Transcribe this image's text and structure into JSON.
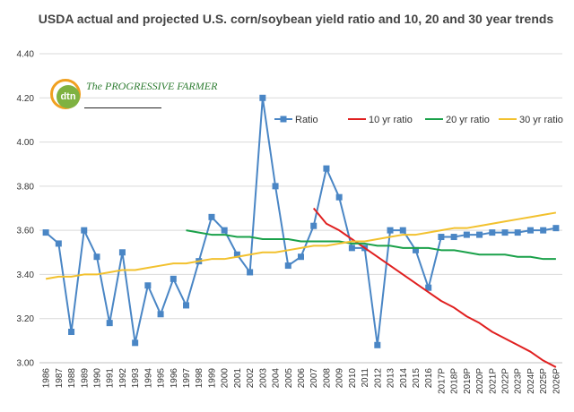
{
  "logo": {
    "brand_short": "dtn",
    "brand_long": "The PROGRESSIVE FARMER"
  },
  "chart_data": {
    "type": "line",
    "title": "USDA actual and projected U.S. corn/soybean yield ratio and 10, 20 and 30 year trends",
    "ylim": [
      3.0,
      4.4
    ],
    "yticks": [
      "3.00",
      "3.20",
      "3.40",
      "3.60",
      "3.80",
      "4.00",
      "4.20",
      "4.40"
    ],
    "grid": true,
    "legend_position": "top-right",
    "categories": [
      "1986",
      "1987",
      "1988",
      "1989",
      "1990",
      "1991",
      "1992",
      "1993",
      "1994",
      "1995",
      "1996",
      "1997",
      "1998",
      "1999",
      "2000",
      "2001",
      "2002",
      "2003",
      "2004",
      "2005",
      "2006",
      "2007",
      "2008",
      "2009",
      "2010",
      "2011",
      "2012",
      "2013",
      "2014",
      "2015",
      "2016",
      "2017P",
      "2018P",
      "2019P",
      "2020P",
      "2021P",
      "2022P",
      "2023P",
      "2024P",
      "2025P",
      "2026P"
    ],
    "series": [
      {
        "name": "Ratio",
        "color": "#4a86c5",
        "marker": "square",
        "values": [
          3.59,
          3.54,
          3.14,
          3.6,
          3.48,
          3.18,
          3.5,
          3.09,
          3.35,
          3.22,
          3.38,
          3.26,
          3.46,
          3.66,
          3.6,
          3.49,
          3.41,
          4.2,
          3.8,
          3.44,
          3.48,
          3.62,
          3.88,
          3.75,
          3.52,
          3.52,
          3.08,
          3.6,
          3.6,
          3.51,
          3.34,
          3.57,
          3.57,
          3.58,
          3.58,
          3.59,
          3.59,
          3.59,
          3.6,
          3.6,
          3.61
        ]
      },
      {
        "name": "10 yr ratio",
        "color": "#e02020",
        "values": [
          null,
          null,
          null,
          null,
          null,
          null,
          null,
          null,
          null,
          null,
          null,
          null,
          null,
          null,
          null,
          null,
          null,
          null,
          null,
          null,
          null,
          3.7,
          3.63,
          3.6,
          3.56,
          3.52,
          3.48,
          3.44,
          3.4,
          3.36,
          3.32,
          3.28,
          3.25,
          3.21,
          3.18,
          3.14,
          3.11,
          3.08,
          3.05,
          3.01,
          2.98
        ]
      },
      {
        "name": "20 yr ratio",
        "color": "#1aa14a",
        "values": [
          null,
          null,
          null,
          null,
          null,
          null,
          null,
          null,
          null,
          null,
          null,
          3.6,
          3.59,
          3.58,
          3.58,
          3.57,
          3.57,
          3.56,
          3.56,
          3.56,
          3.55,
          3.55,
          3.55,
          3.55,
          3.54,
          3.54,
          3.53,
          3.53,
          3.52,
          3.52,
          3.52,
          3.51,
          3.51,
          3.5,
          3.49,
          3.49,
          3.49,
          3.48,
          3.48,
          3.47,
          3.47
        ]
      },
      {
        "name": "30 yr ratio",
        "color": "#f2c12e",
        "values": [
          3.38,
          3.39,
          3.39,
          3.4,
          3.4,
          3.41,
          3.42,
          3.42,
          3.43,
          3.44,
          3.45,
          3.45,
          3.46,
          3.47,
          3.47,
          3.48,
          3.49,
          3.5,
          3.5,
          3.51,
          3.52,
          3.53,
          3.53,
          3.54,
          3.55,
          3.55,
          3.56,
          3.57,
          3.58,
          3.58,
          3.59,
          3.6,
          3.61,
          3.61,
          3.62,
          3.63,
          3.64,
          3.65,
          3.66,
          3.67,
          3.68
        ]
      }
    ]
  }
}
